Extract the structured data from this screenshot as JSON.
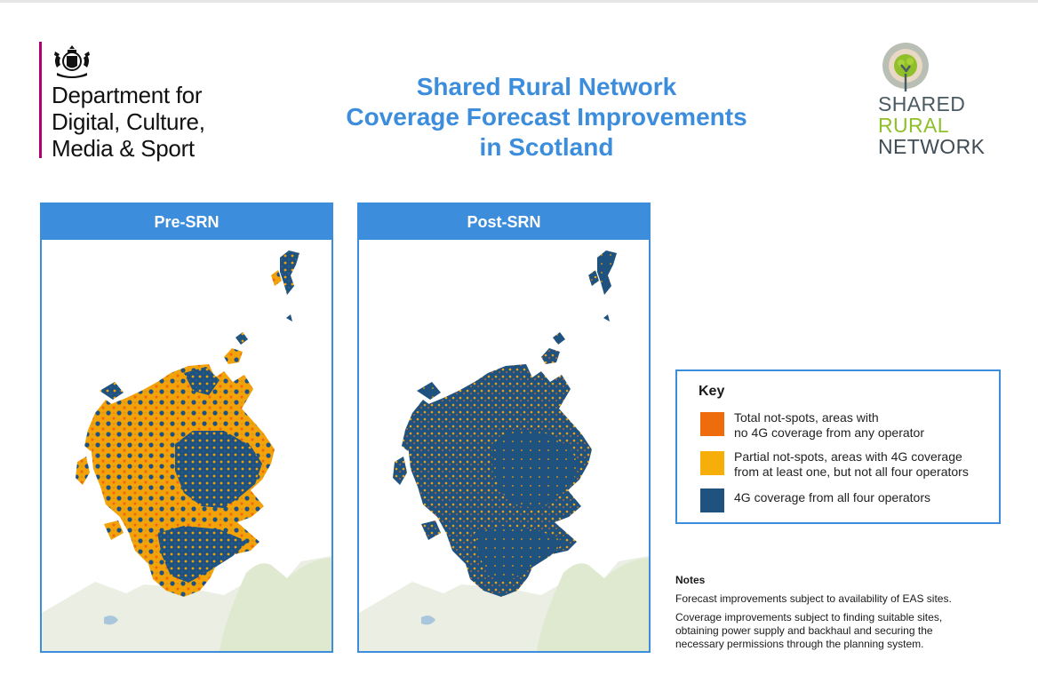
{
  "department": {
    "name_lines": [
      "Department for",
      "Digital, Culture,",
      "Media & Sport"
    ],
    "accent_color": "#b4006e",
    "crest_icon": "royal-coat-of-arms-icon"
  },
  "title": {
    "lines": [
      "Shared Rural Network",
      "Coverage Forecast Improvements",
      "in Scotland"
    ],
    "color": "#3c8ddb"
  },
  "srn_logo": {
    "wordmark": [
      "SHARED",
      "RURAL",
      "NETWORK"
    ],
    "icon": "tree-circle-icon",
    "colors": {
      "grey": "#4a5a63",
      "green": "#8fbf2a"
    }
  },
  "maps": {
    "pre": {
      "label": "Pre-SRN"
    },
    "post": {
      "label": "Post-SRN"
    }
  },
  "key": {
    "title": "Key",
    "items": [
      {
        "color": "#ef6c0c",
        "lines": [
          "Total not-spots, areas with",
          "no 4G coverage from any operator"
        ]
      },
      {
        "color": "#f6ae09",
        "lines": [
          "Partial not-spots, areas with 4G coverage",
          "from at least one, but not all four operators"
        ]
      },
      {
        "color": "#1f527f",
        "lines": [
          "4G coverage from all four operators"
        ]
      }
    ]
  },
  "notes": {
    "heading": "Notes",
    "paragraphs": [
      [
        "Forecast improvements subject to availability of EAS sites."
      ],
      [
        "Coverage improvements subject to finding suitable sites,",
        "obtaining power supply and backhaul and securing the",
        "necessary permissions through the planning system."
      ]
    ]
  }
}
